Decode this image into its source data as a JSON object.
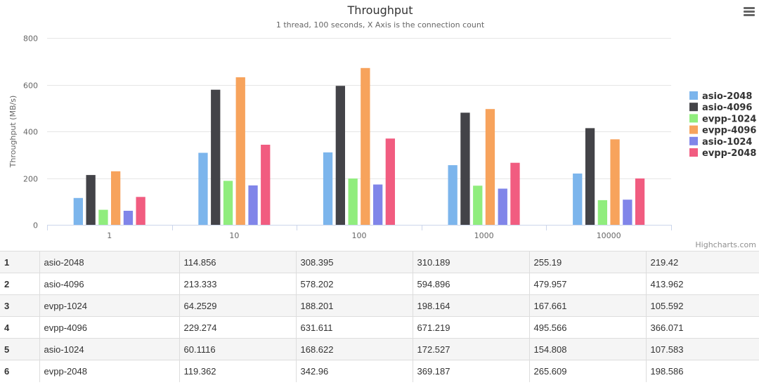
{
  "chart_data": {
    "type": "bar",
    "title": "Throughput",
    "subtitle": "1 thread, 100 seconds, X Axis is the connection count",
    "ylabel": "Throughput (MB/s)",
    "xlabel": "",
    "categories": [
      "1",
      "10",
      "100",
      "1000",
      "10000"
    ],
    "ylim": [
      0,
      800
    ],
    "yticks": [
      0,
      200,
      400,
      600,
      800
    ],
    "grid": true,
    "legend_placement": "right",
    "series": [
      {
        "name": "asio-2048",
        "color": "#7cb5ec",
        "values": [
          114.856,
          308.395,
          310.189,
          255.19,
          219.42
        ]
      },
      {
        "name": "asio-4096",
        "color": "#434348",
        "values": [
          213.333,
          578.202,
          594.896,
          479.957,
          413.962
        ]
      },
      {
        "name": "evpp-1024",
        "color": "#90ed7d",
        "values": [
          64.2529,
          188.201,
          198.164,
          167.661,
          105.592
        ]
      },
      {
        "name": "evpp-4096",
        "color": "#f7a35c",
        "values": [
          229.274,
          631.611,
          671.219,
          495.566,
          366.071
        ]
      },
      {
        "name": "asio-1024",
        "color": "#8085e9",
        "values": [
          60.1116,
          168.622,
          172.527,
          154.808,
          107.583
        ]
      },
      {
        "name": "evpp-2048",
        "color": "#f15c80",
        "values": [
          119.362,
          342.96,
          369.187,
          265.609,
          198.586
        ]
      }
    ]
  },
  "credits": "Highcharts.com",
  "menu_icon": "hamburger-menu-icon",
  "table": {
    "rows": [
      {
        "index": "1",
        "name": "asio-2048",
        "values": [
          "114.856",
          "308.395",
          "310.189",
          "255.19",
          "219.42"
        ]
      },
      {
        "index": "2",
        "name": "asio-4096",
        "values": [
          "213.333",
          "578.202",
          "594.896",
          "479.957",
          "413.962"
        ]
      },
      {
        "index": "3",
        "name": "evpp-1024",
        "values": [
          "64.2529",
          "188.201",
          "198.164",
          "167.661",
          "105.592"
        ]
      },
      {
        "index": "4",
        "name": "evpp-4096",
        "values": [
          "229.274",
          "631.611",
          "671.219",
          "495.566",
          "366.071"
        ]
      },
      {
        "index": "5",
        "name": "asio-1024",
        "values": [
          "60.1116",
          "168.622",
          "172.527",
          "154.808",
          "107.583"
        ]
      },
      {
        "index": "6",
        "name": "evpp-2048",
        "values": [
          "119.362",
          "342.96",
          "369.187",
          "265.609",
          "198.586"
        ]
      }
    ]
  }
}
